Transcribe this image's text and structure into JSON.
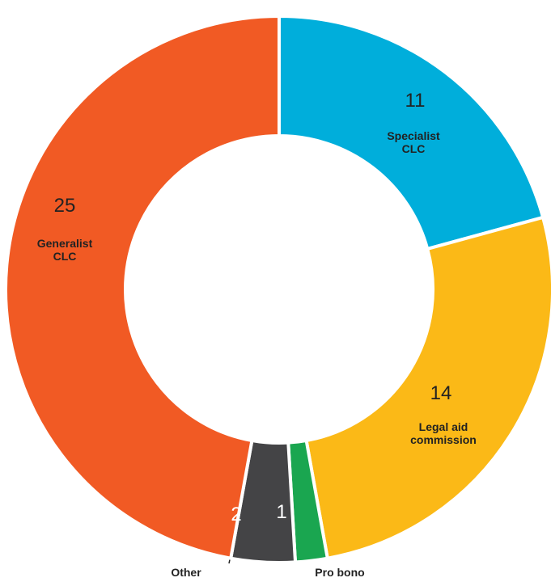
{
  "chart_data": {
    "type": "pie",
    "categories": [
      "Specialist CLC",
      "Legal aid commission",
      "Pro bono",
      "Other",
      "Generalist CLC"
    ],
    "values": [
      11,
      14,
      1,
      2,
      25
    ],
    "colors": [
      "#00aedb",
      "#fbb917",
      "#1aa650",
      "#444446",
      "#f15a24"
    ]
  }
}
